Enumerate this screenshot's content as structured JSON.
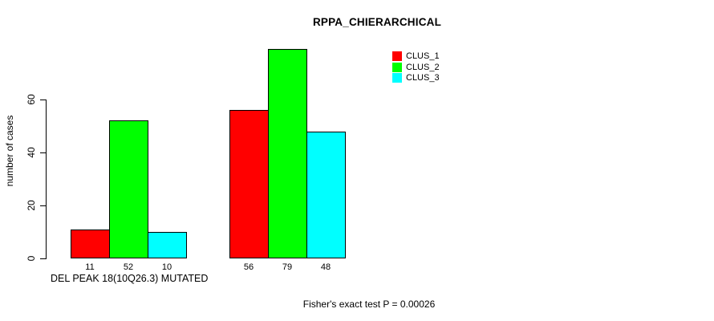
{
  "chart_data": {
    "type": "bar",
    "grouped": true,
    "title": "RPPA_CHIERARCHICAL",
    "xlabel": "DEL PEAK 18(10Q26.3) MUTATED",
    "ylabel": "number of cases",
    "annotation": "Fisher's exact test P = 0.00026",
    "categories": [
      "DEL PEAK 18(10Q26.3) MUTATED",
      ""
    ],
    "series": [
      {
        "name": "CLUS_1",
        "color": "#ff0000",
        "values": [
          11,
          56
        ]
      },
      {
        "name": "CLUS_2",
        "color": "#00ff00",
        "values": [
          52,
          79
        ]
      },
      {
        "name": "CLUS_3",
        "color": "#00ffff",
        "values": [
          10,
          48
        ]
      }
    ],
    "yticks": [
      0,
      20,
      40,
      60
    ],
    "ylim": [
      0,
      80
    ],
    "bar_value_labels": true,
    "grid": false,
    "legend_position": "top-right",
    "axis_color": "#000000",
    "bar_border_color": "#000000",
    "background_color": "#ffffff"
  }
}
